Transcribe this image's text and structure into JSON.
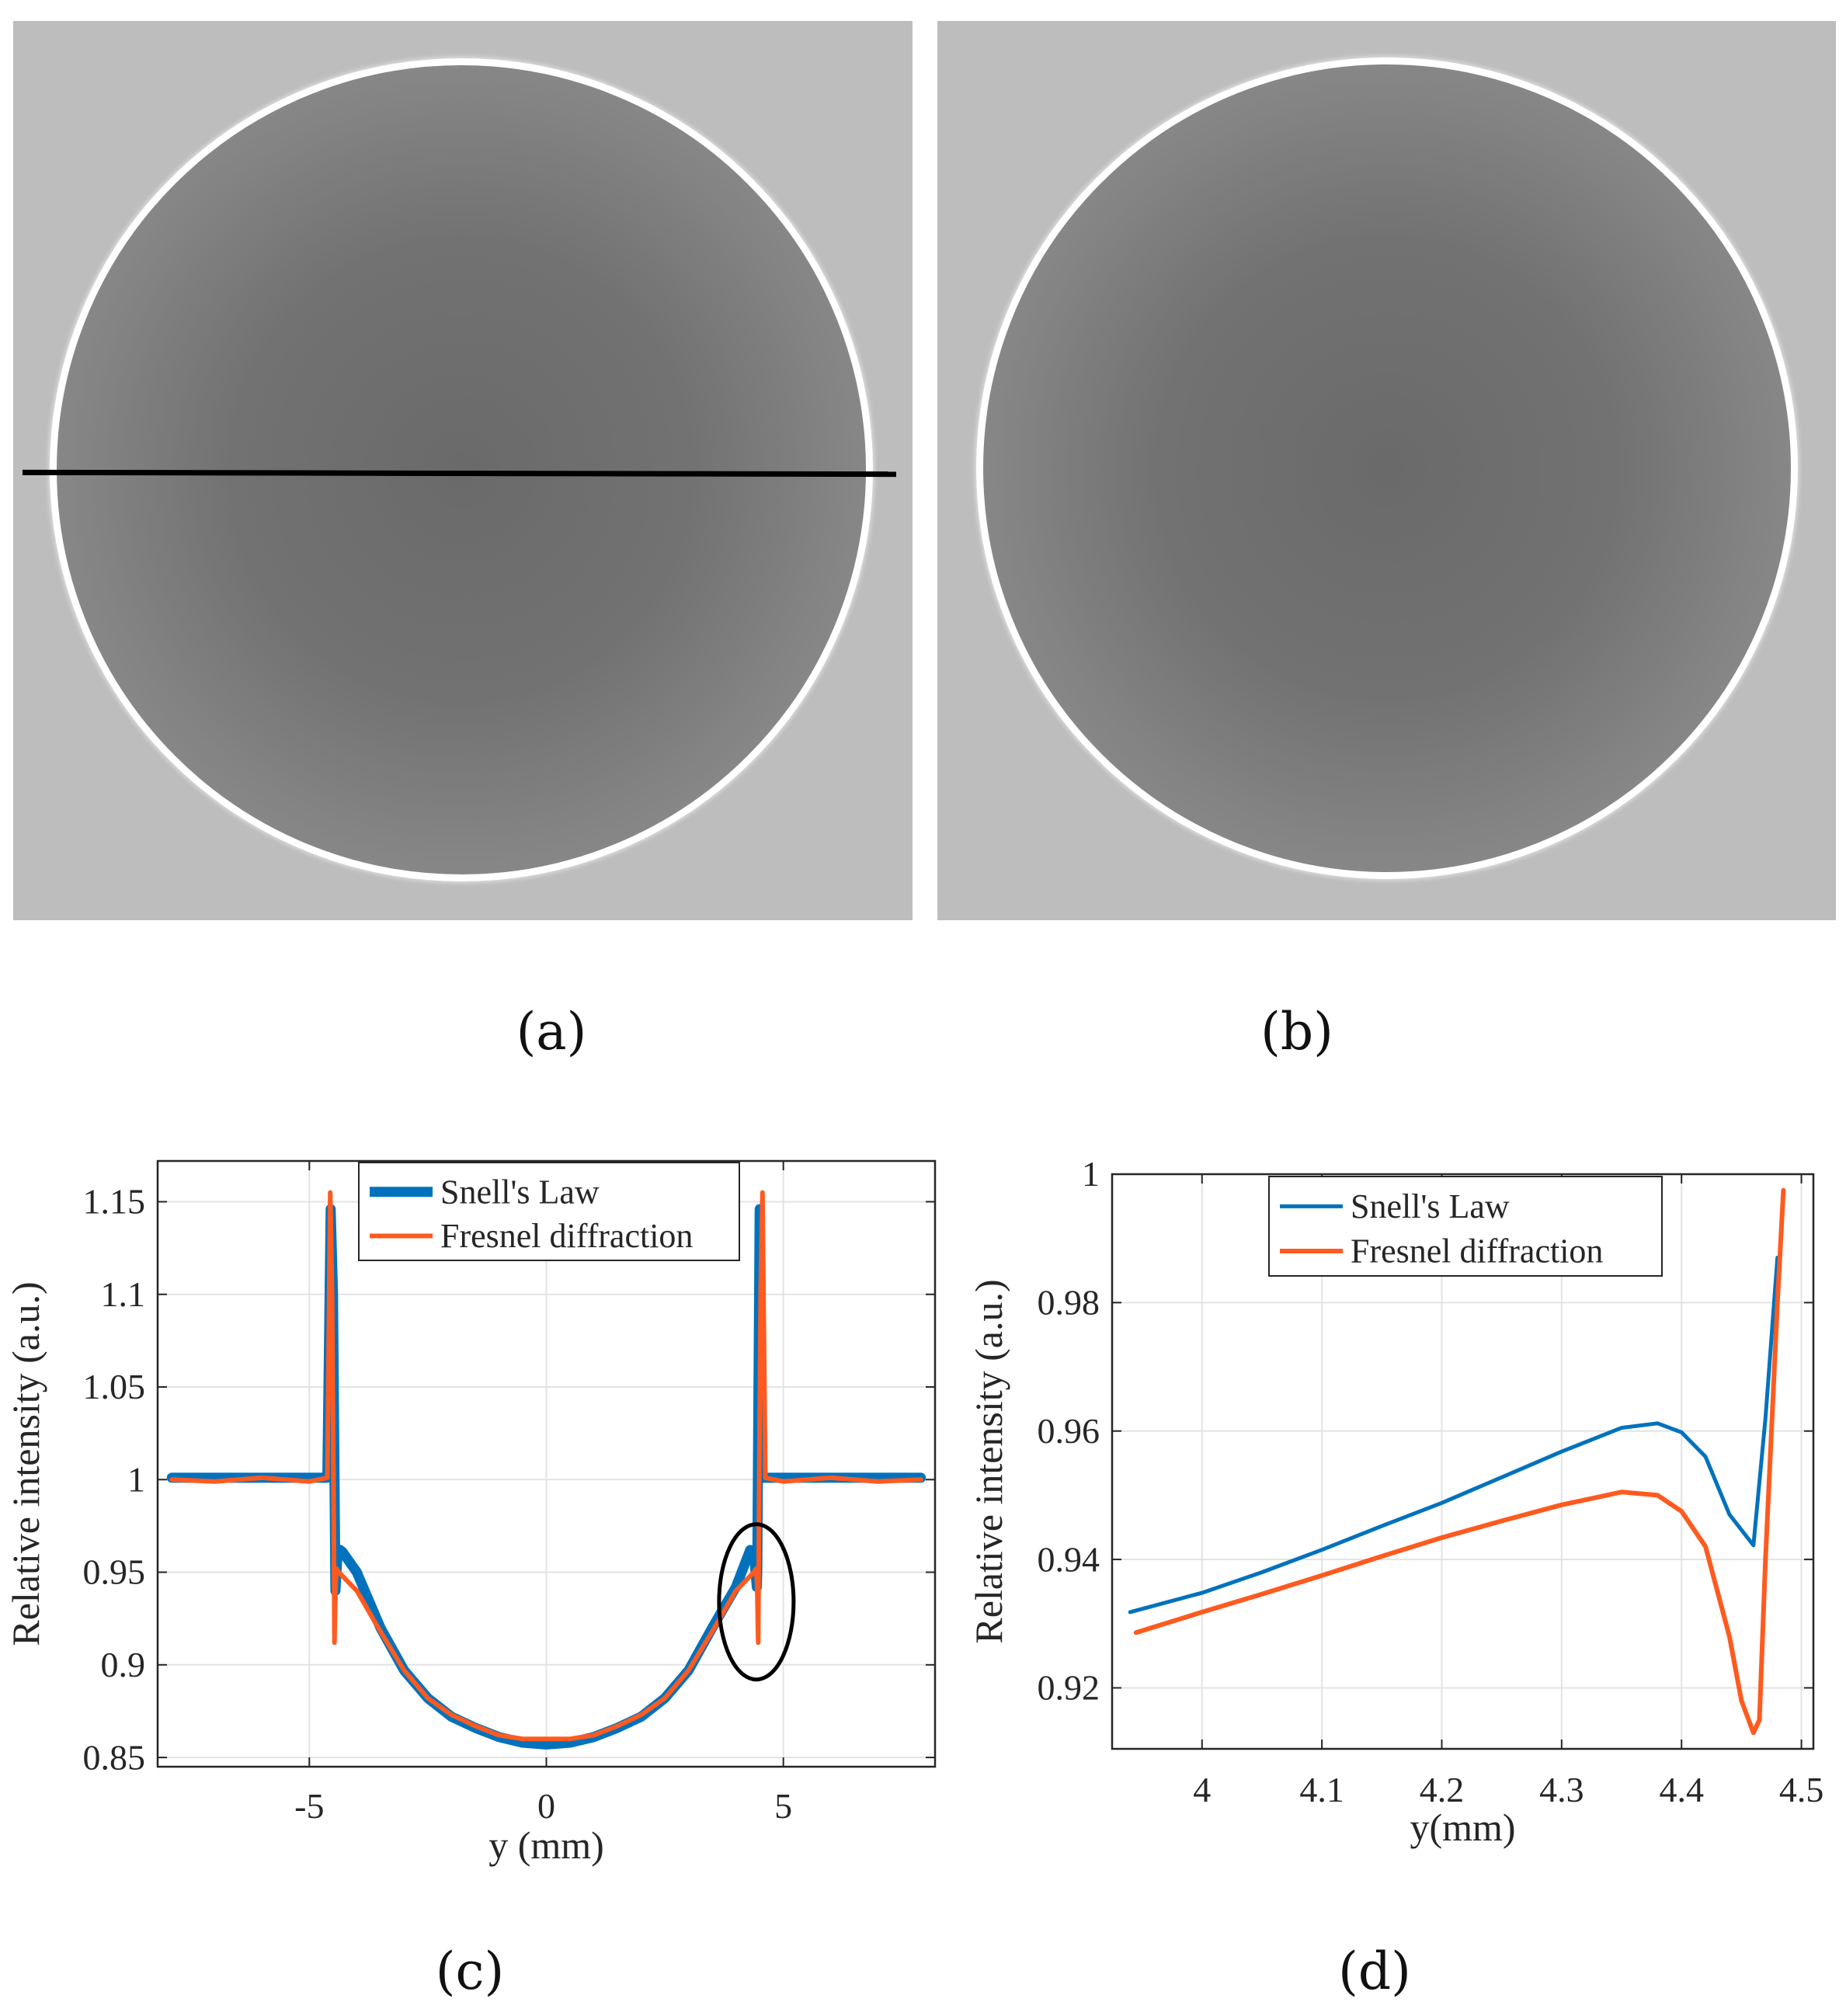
{
  "captions": {
    "a": "(a)",
    "b": "(b)",
    "c": "(c)",
    "d": "(d)"
  },
  "colors": {
    "snell": "#0072bd",
    "fresnel": "#ff5a1f",
    "background": "#bdbdbd",
    "line": "#000000"
  },
  "chart_data": [
    {
      "id": "c",
      "type": "line",
      "xlabel": "y (mm)",
      "ylabel": "Relative intensity (a.u.)",
      "xlim": [
        -8.2,
        8.2
      ],
      "ylim": [
        0.845,
        1.172
      ],
      "xticks": [
        -5,
        0,
        5
      ],
      "xtick_labels": [
        "-5",
        "0",
        "5"
      ],
      "yticks": [
        0.85,
        0.9,
        0.95,
        1,
        1.05,
        1.1,
        1.15
      ],
      "ytick_labels": [
        "0.85",
        "0.9",
        "0.95",
        "1",
        "1.05",
        "1.1",
        "1.15"
      ],
      "grid": true,
      "legend": "top-center",
      "series": [
        {
          "name": "Snell's Law",
          "x": [
            -7.9,
            -4.62,
            -4.55,
            -4.5,
            -4.45,
            -4.4,
            -4.35,
            -4.3,
            -4.0,
            -3.5,
            -3.0,
            -2.5,
            -2.0,
            -1.5,
            -1.0,
            -0.5,
            0,
            0.5,
            1.0,
            1.5,
            2.0,
            2.5,
            3.0,
            3.5,
            4.0,
            4.3,
            4.38,
            4.44,
            4.45,
            4.5,
            4.55,
            4.62,
            7.9
          ],
          "y": [
            1.001,
            1.001,
            1.146,
            1.1,
            0.94,
            0.962,
            0.962,
            0.961,
            0.95,
            0.92,
            0.897,
            0.882,
            0.872,
            0.866,
            0.861,
            0.858,
            0.857,
            0.858,
            0.861,
            0.866,
            0.872,
            0.882,
            0.897,
            0.92,
            0.942,
            0.962,
            0.961,
            0.942,
            0.95,
            1.146,
            1.001,
            1.001,
            1.001
          ]
        },
        {
          "name": "Fresnel diffraction",
          "x": [
            -7.9,
            -7.0,
            -6.0,
            -5.0,
            -4.62,
            -4.56,
            -4.52,
            -4.49,
            -4.47,
            -4.45,
            -4.43,
            -4.38,
            -4.0,
            -3.5,
            -3.0,
            -2.5,
            -2.0,
            -1.5,
            -1.0,
            -0.5,
            0,
            0.5,
            1.0,
            1.5,
            2.0,
            2.5,
            3.0,
            3.5,
            4.0,
            4.38,
            4.43,
            4.45,
            4.47,
            4.49,
            4.52,
            4.56,
            4.62,
            5.0,
            6.0,
            7.0,
            7.9
          ],
          "y": [
            1.0,
            0.999,
            1.001,
            0.999,
            1.001,
            1.155,
            1.1,
            1.0,
            0.912,
            0.94,
            0.952,
            0.95,
            0.94,
            0.918,
            0.897,
            0.882,
            0.873,
            0.867,
            0.862,
            0.86,
            0.86,
            0.86,
            0.862,
            0.867,
            0.873,
            0.882,
            0.897,
            0.918,
            0.94,
            0.95,
            0.952,
            0.94,
            0.912,
            1.0,
            1.1,
            1.155,
            1.001,
            0.999,
            1.001,
            0.999,
            1.0
          ]
        }
      ],
      "annotation": "ellipse around y ≈ 4.4 mm"
    },
    {
      "id": "d",
      "type": "line",
      "xlabel": "y(mm)",
      "ylabel": "Relative intensity (a.u.)",
      "xlim": [
        3.925,
        4.51
      ],
      "ylim": [
        0.9105,
        1.0
      ],
      "xticks": [
        4,
        4.1,
        4.2,
        4.3,
        4.4,
        4.5
      ],
      "xtick_labels": [
        "4",
        "4.1",
        "4.2",
        "4.3",
        "4.4",
        "4.5"
      ],
      "yticks": [
        0.92,
        0.94,
        0.96,
        0.98,
        1
      ],
      "ytick_labels": [
        "0.92",
        "0.94",
        "0.96",
        "0.98",
        "1"
      ],
      "grid": true,
      "legend": "top-center",
      "series": [
        {
          "name": "Snell's Law",
          "x": [
            3.94,
            4.0,
            4.05,
            4.1,
            4.15,
            4.2,
            4.25,
            4.3,
            4.35,
            4.38,
            4.4,
            4.42,
            4.44,
            4.46,
            4.47,
            4.48
          ],
          "y": [
            0.9318,
            0.9348,
            0.938,
            0.9415,
            0.9452,
            0.9488,
            0.9528,
            0.9568,
            0.9605,
            0.9612,
            0.9598,
            0.956,
            0.947,
            0.9422,
            0.962,
            0.987
          ]
        },
        {
          "name": "Fresnel diffraction",
          "x": [
            3.945,
            4.0,
            4.05,
            4.1,
            4.15,
            4.2,
            4.25,
            4.3,
            4.35,
            4.38,
            4.4,
            4.42,
            4.44,
            4.45,
            4.46,
            4.465,
            4.47,
            4.48,
            4.485
          ],
          "y": [
            0.9286,
            0.9318,
            0.9346,
            0.9375,
            0.9405,
            0.9434,
            0.946,
            0.9485,
            0.9505,
            0.95,
            0.9475,
            0.942,
            0.928,
            0.918,
            0.913,
            0.915,
            0.94,
            0.98,
            0.9975
          ]
        }
      ]
    }
  ]
}
